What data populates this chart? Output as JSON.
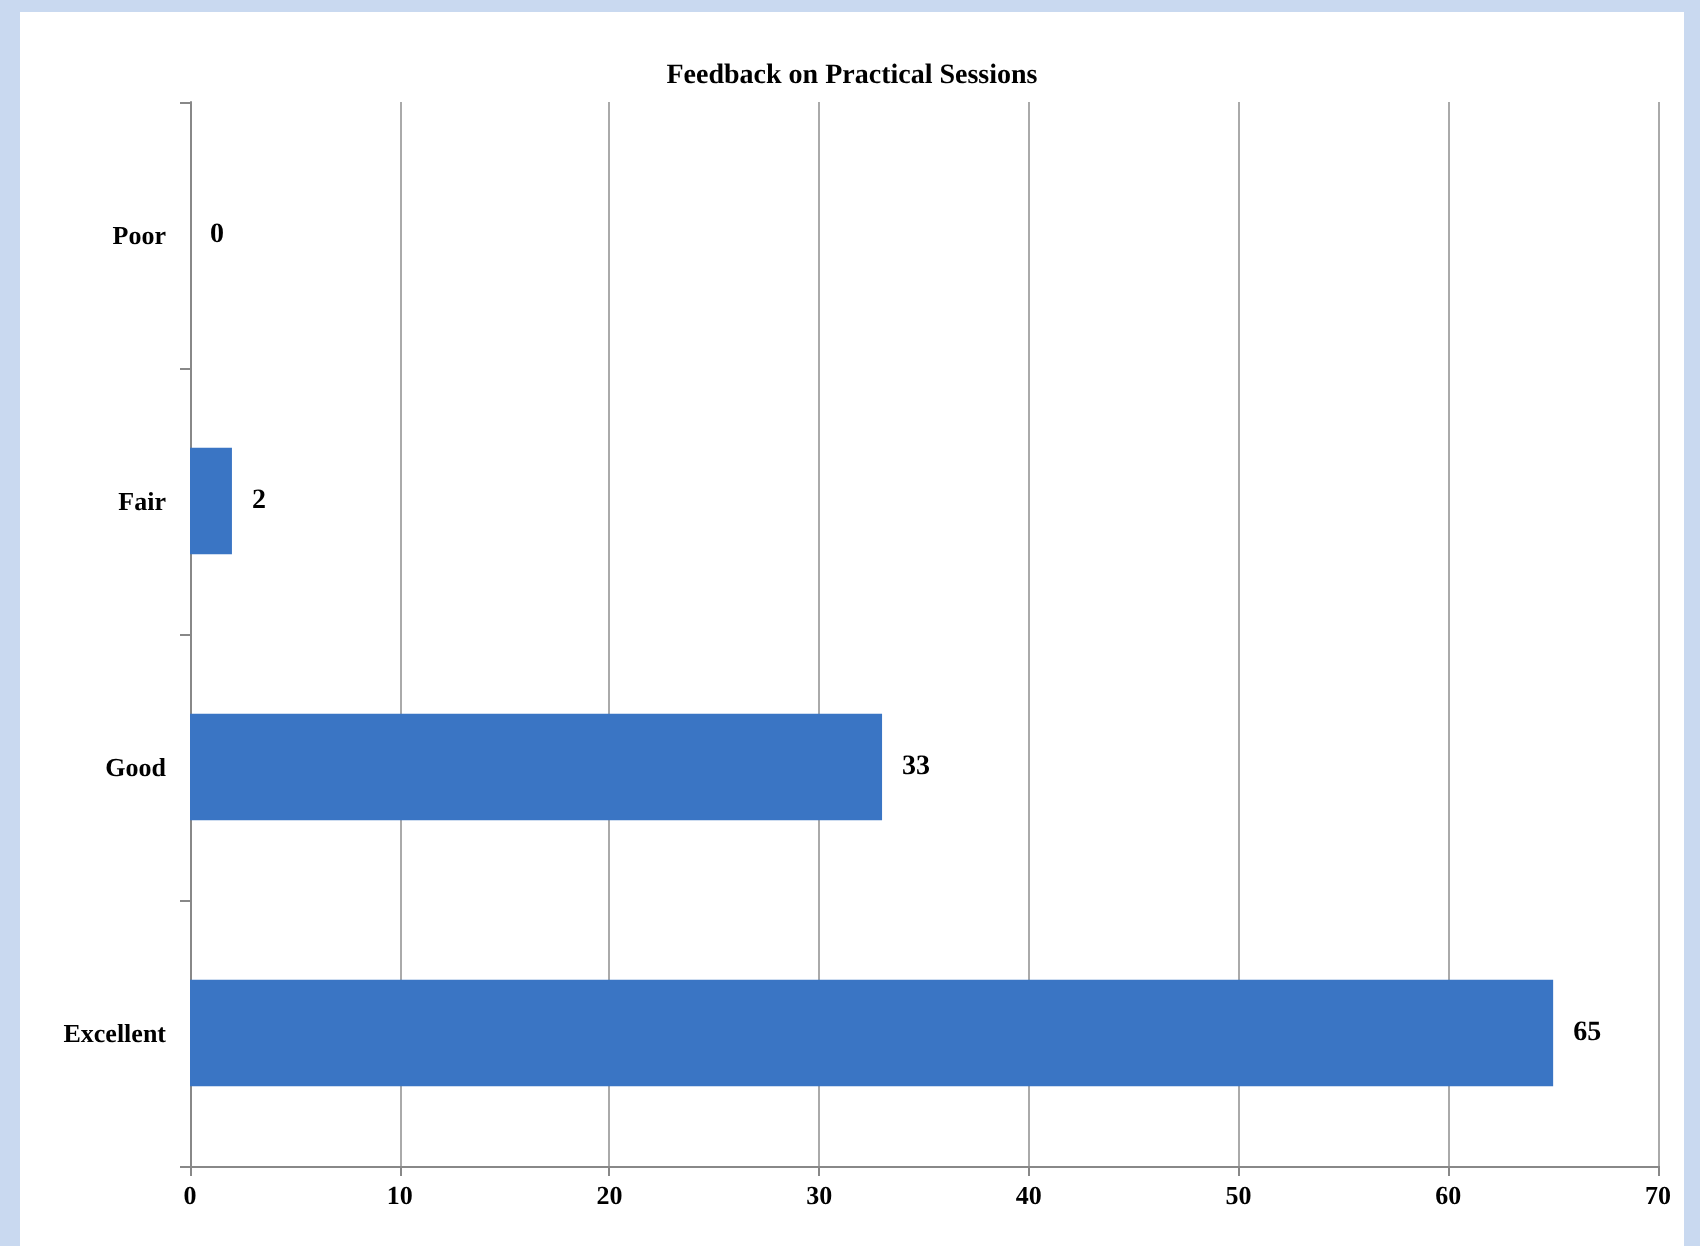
{
  "chart_data": {
    "type": "bar",
    "title": "Feedback on Practical Sessions",
    "orientation": "horizontal",
    "categories": [
      "Poor",
      "Fair",
      "Good",
      "Excellent"
    ],
    "values": [
      0,
      2,
      33,
      65
    ],
    "color": "#3a75c4",
    "xlim": [
      0,
      70
    ],
    "xticks": [
      0,
      10,
      20,
      30,
      40,
      50,
      60,
      70
    ],
    "grid": "x",
    "data_labels": true
  }
}
